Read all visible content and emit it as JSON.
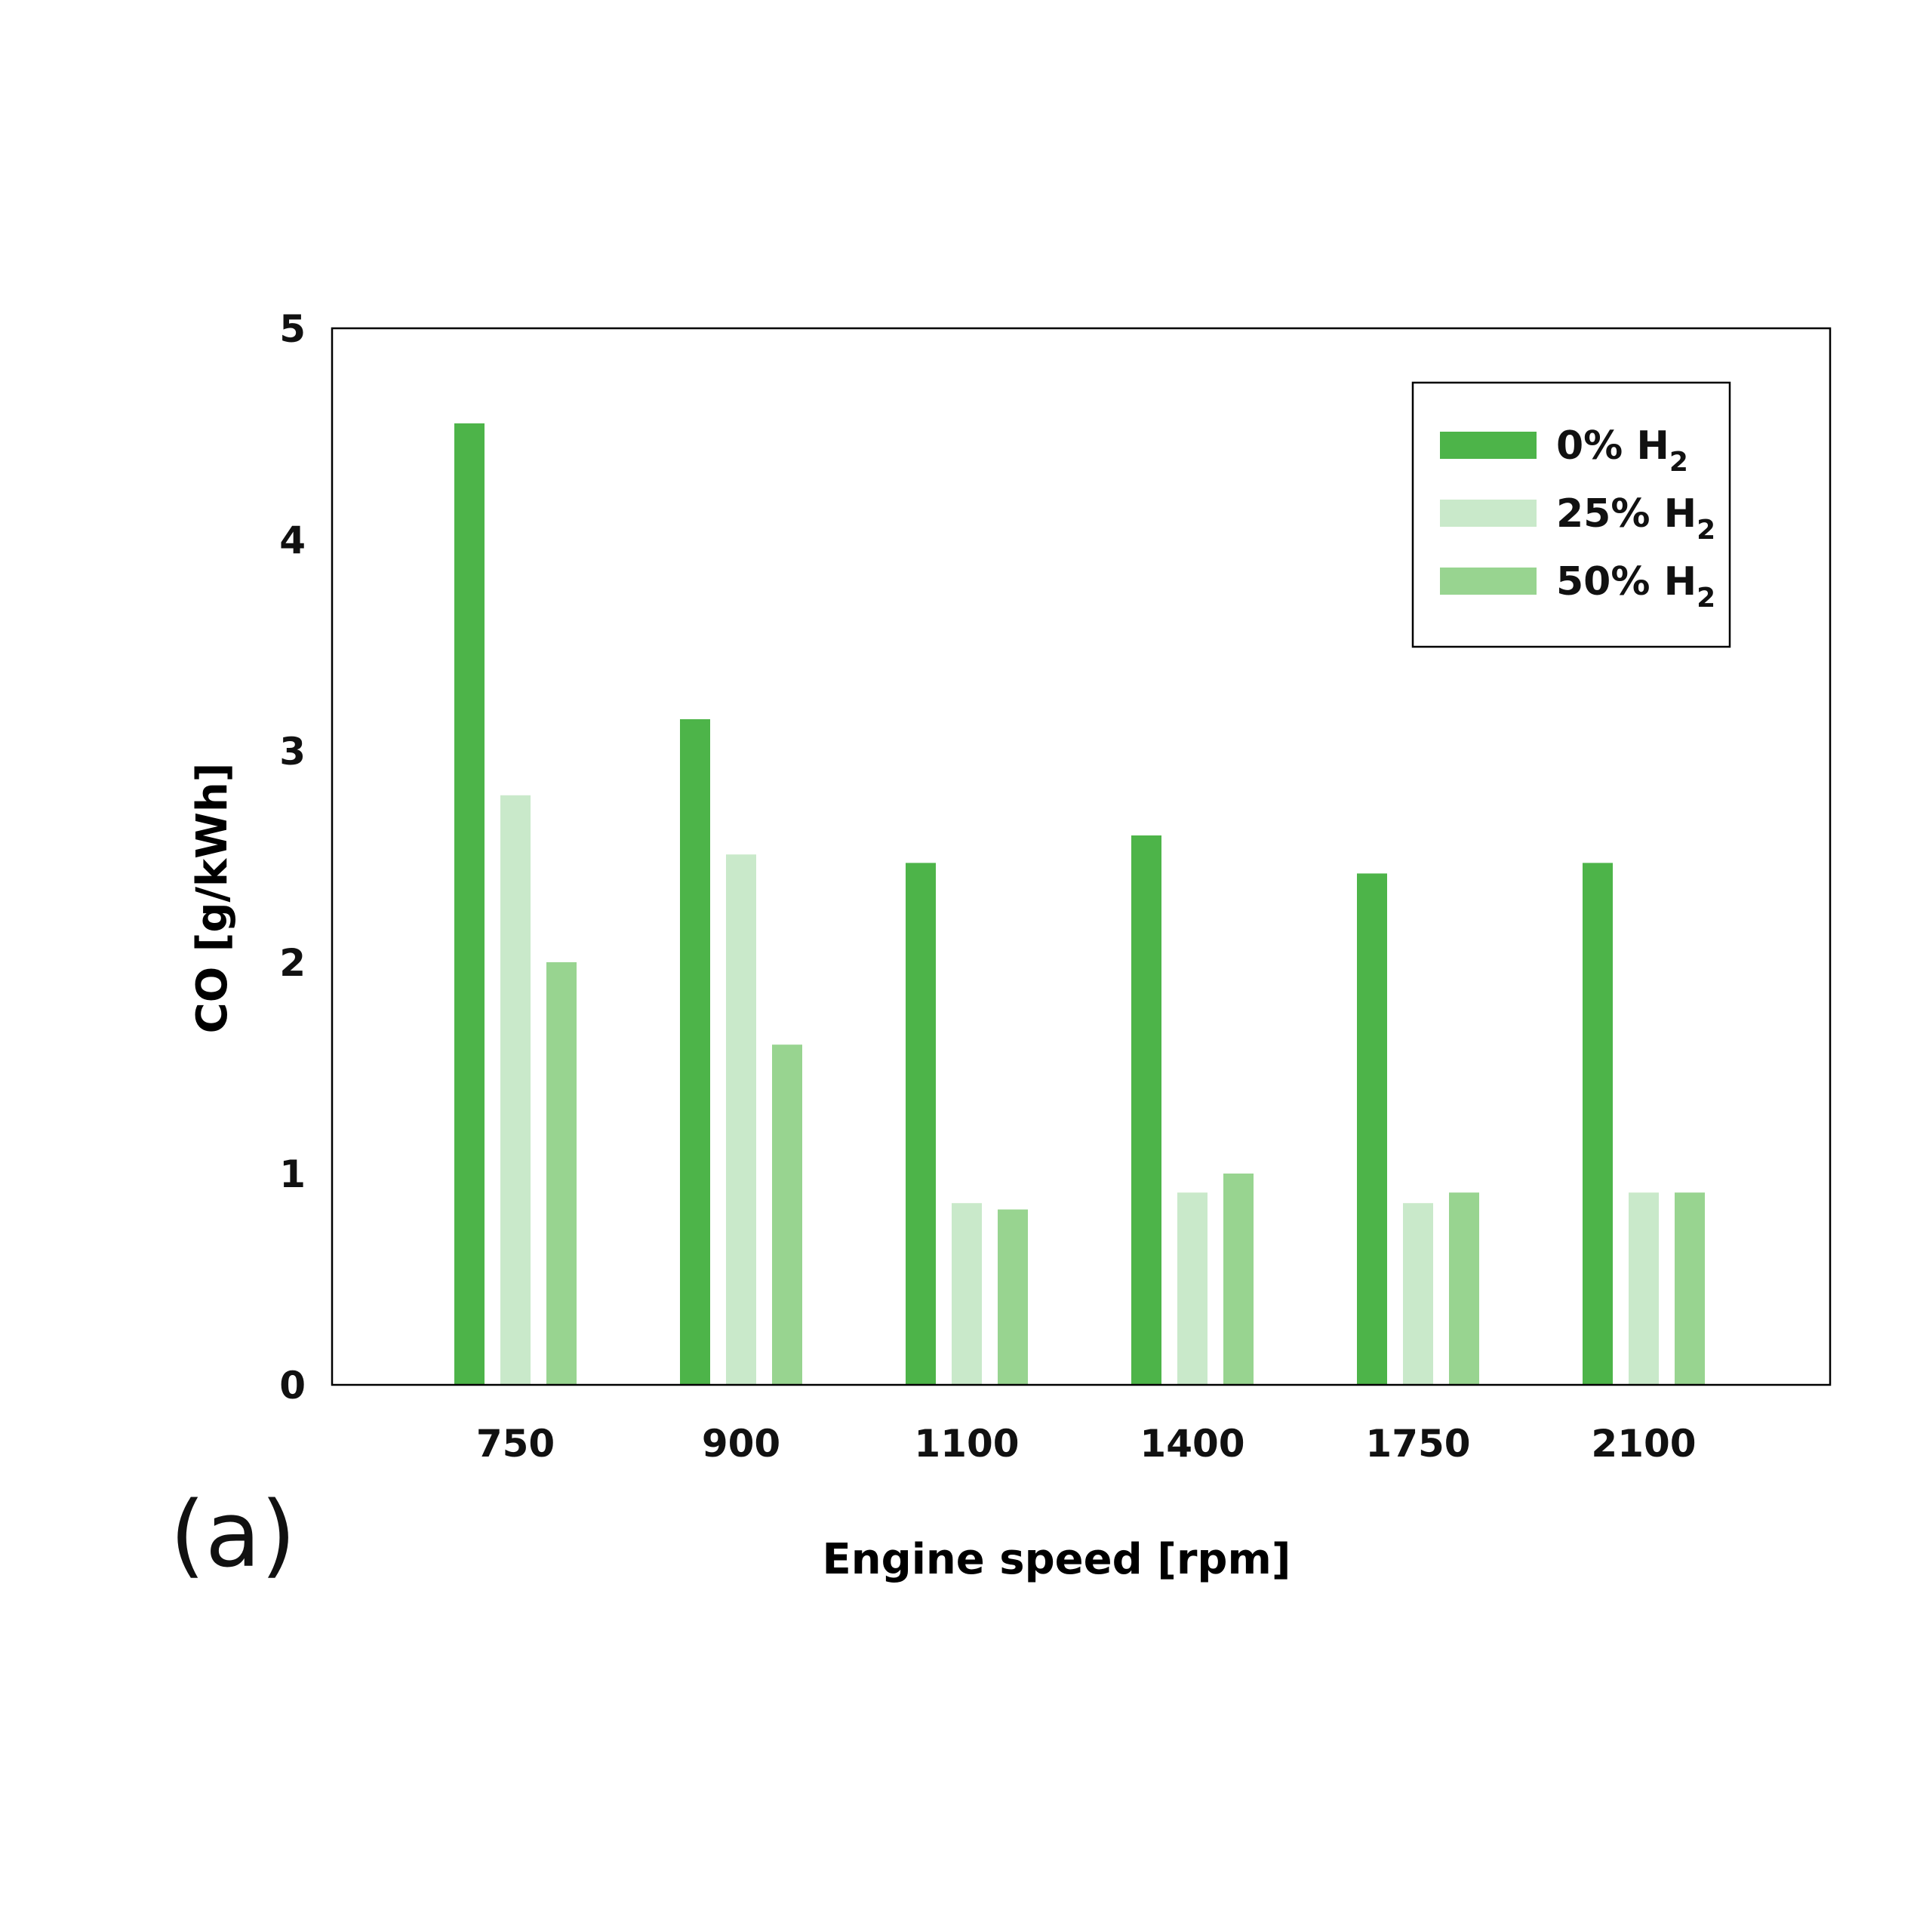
{
  "panel_label": "(a)",
  "chart_data": {
    "type": "bar",
    "title": "",
    "xlabel": "Engine speed [rpm]",
    "ylabel": "CO [g/kWh]",
    "ylim": [
      0,
      5
    ],
    "yticks": [
      "0",
      "1",
      "2",
      "3",
      "4",
      "5"
    ],
    "grid": false,
    "legend_position": "top-right",
    "categories": [
      "750",
      "900",
      "1100",
      "1400",
      "1750",
      "2100"
    ],
    "series": [
      {
        "name": "0% H",
        "subscript": "2",
        "color": "#4db449",
        "values": [
          4.55,
          3.15,
          2.47,
          2.6,
          2.42,
          2.47
        ]
      },
      {
        "name": "25% H",
        "subscript": "2",
        "color": "#c9e9ca",
        "values": [
          2.79,
          2.51,
          0.86,
          0.91,
          0.86,
          0.91
        ]
      },
      {
        "name": "50% H",
        "subscript": "2",
        "color": "#98d490",
        "values": [
          2.0,
          1.61,
          0.83,
          1.0,
          0.91,
          0.91
        ]
      }
    ]
  }
}
